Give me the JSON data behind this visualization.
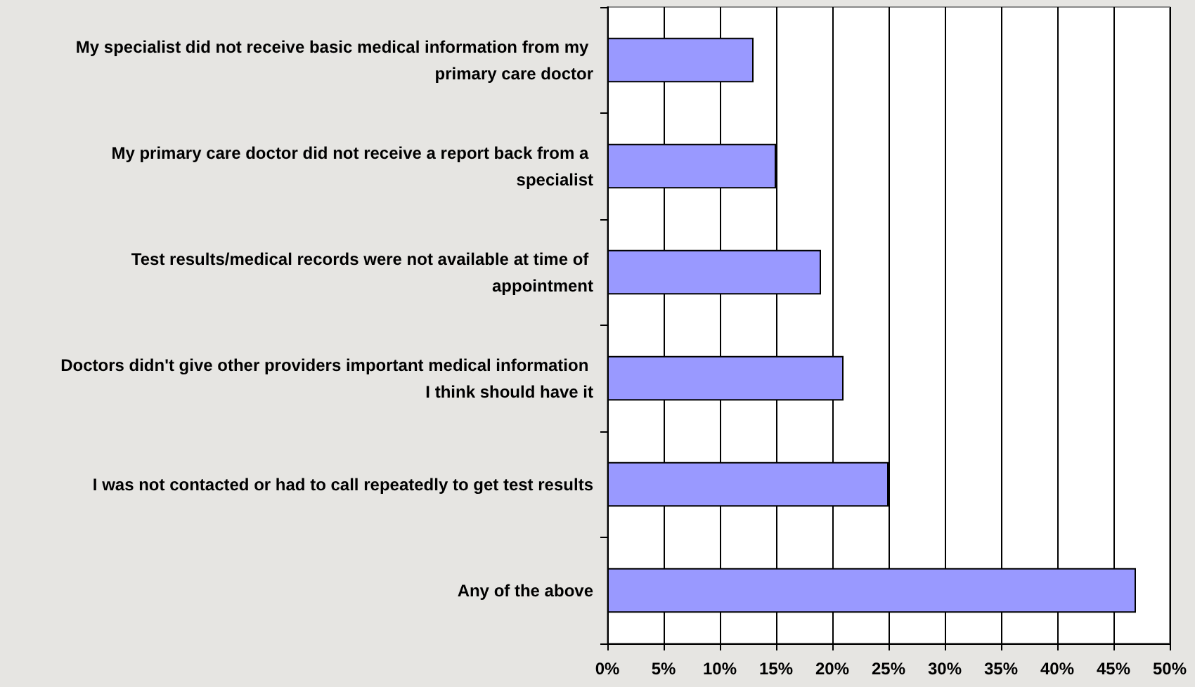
{
  "chart_data": {
    "type": "bar",
    "orientation": "horizontal",
    "categories": [
      "My specialist did not receive basic medical information from my primary care doctor",
      "My primary care doctor did not receive a report back from a specialist",
      "Test results/medical records were not available at time of appointment",
      "Doctors didn't give other providers important medical information I think should have it",
      "I was not contacted or had to call repeatedly to get test results",
      "Any of the above"
    ],
    "values": [
      13,
      15,
      19,
      21,
      25,
      47
    ],
    "color": "#9999ff",
    "xlim": [
      0,
      50
    ],
    "xticks": [
      {
        "value": 0,
        "label": "0%"
      },
      {
        "value": 5,
        "label": "5%"
      },
      {
        "value": 10,
        "label": "10%"
      },
      {
        "value": 15,
        "label": "15%"
      },
      {
        "value": 20,
        "label": "20%"
      },
      {
        "value": 25,
        "label": "25%"
      },
      {
        "value": 30,
        "label": "30%"
      },
      {
        "value": 35,
        "label": "35%"
      },
      {
        "value": 40,
        "label": "40%"
      },
      {
        "value": 45,
        "label": "45%"
      },
      {
        "value": 50,
        "label": "50%"
      }
    ],
    "grid": "x"
  }
}
